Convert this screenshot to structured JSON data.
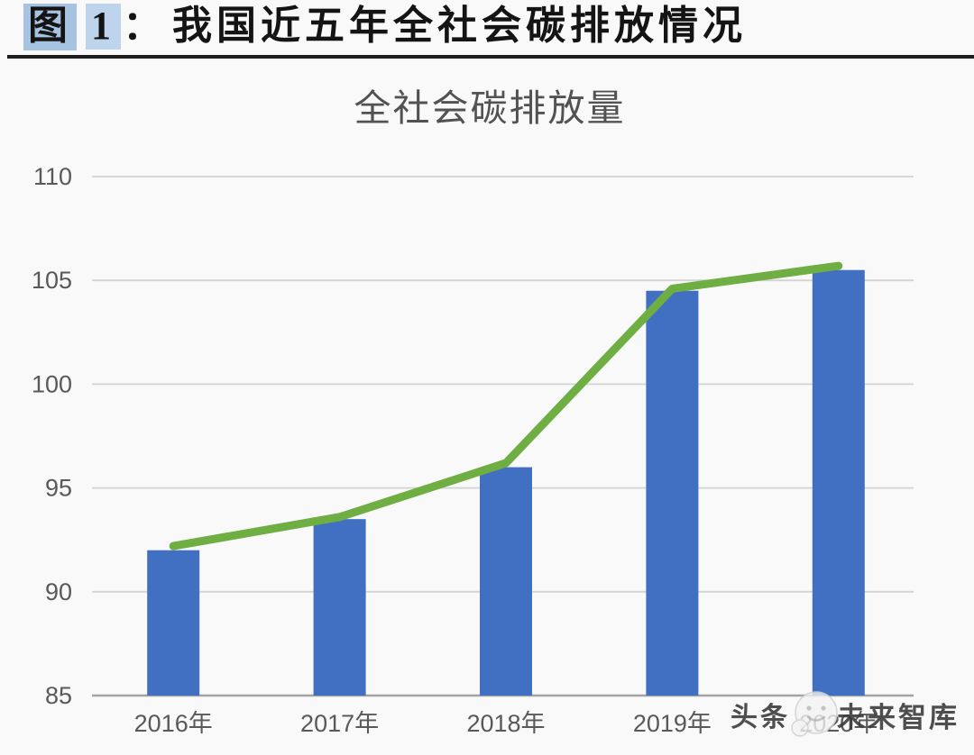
{
  "figure_caption": {
    "label": "图",
    "number": "1",
    "separator": "：",
    "text": "我国近五年全社会碳排放情况"
  },
  "chart_data": {
    "type": "bar",
    "title": "全社会碳排放量",
    "categories": [
      "2016年",
      "2017年",
      "2018年",
      "2019年",
      "2020年"
    ],
    "series": [
      {
        "type": "bar",
        "values": [
          92,
          93.5,
          96,
          104.5,
          105.5
        ],
        "color": "#4170c3"
      },
      {
        "type": "line",
        "values": [
          92.2,
          93.6,
          96.2,
          104.6,
          105.7
        ],
        "color": "#6fae43"
      }
    ],
    "ylim": [
      85,
      110
    ],
    "yticks": [
      85,
      90,
      95,
      100,
      105,
      110
    ],
    "grid": true,
    "legend_position": "none",
    "xlabel": "",
    "ylabel": ""
  },
  "watermark": {
    "prefix": "头条",
    "logo": "vzkoo-face-logo",
    "source": "未来智库"
  },
  "colors": {
    "bar": "#4170c3",
    "line": "#6fae43",
    "gridline": "#d3d3d3",
    "axis_line": "#a3a3a3",
    "tick_text": "#595959",
    "caption_highlight": "#a6c4e2",
    "caption_highlight_2": "#bdd4ec"
  }
}
